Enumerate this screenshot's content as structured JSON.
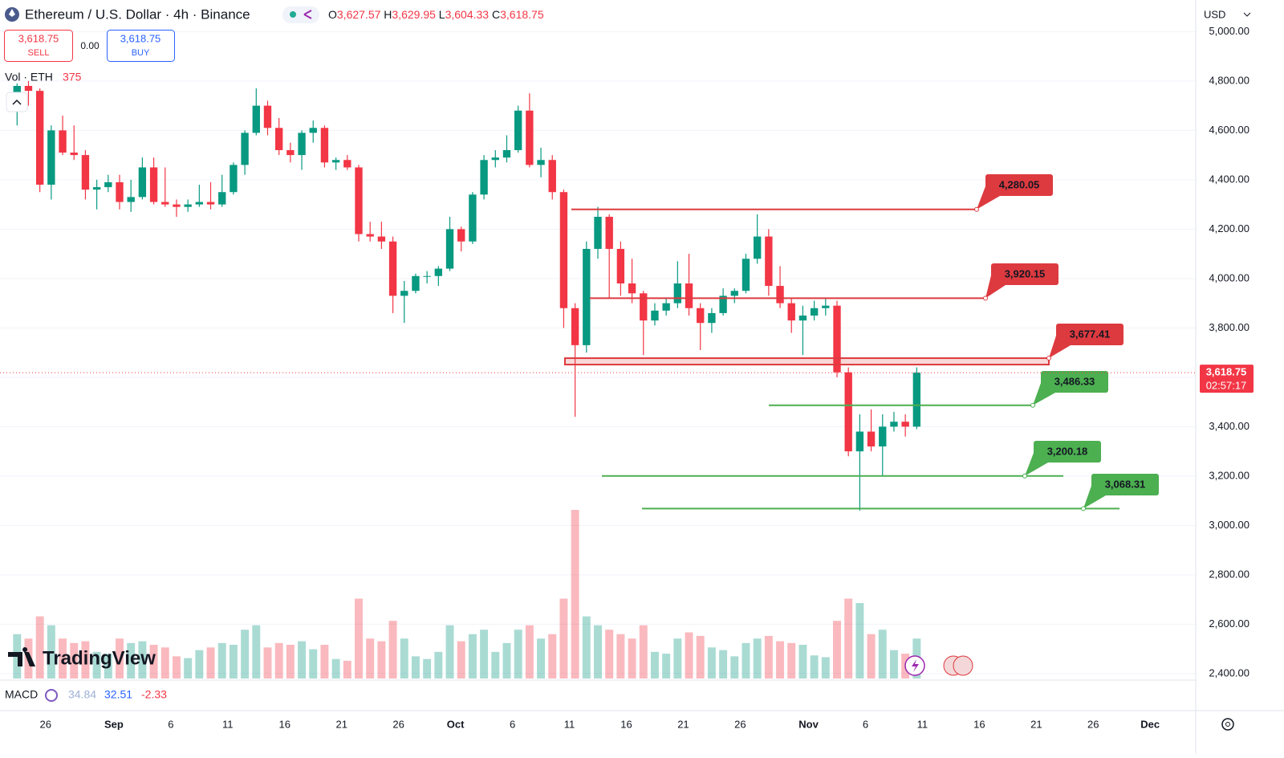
{
  "header": {
    "symbol": "Ethereum / U.S. Dollar · 4h · Binance",
    "ohlc": [
      {
        "label": "O",
        "value": "3,627.57"
      },
      {
        "label": "H",
        "value": "3,629.95"
      },
      {
        "label": "L",
        "value": "3,604.33"
      },
      {
        "label": "C",
        "value": "3,618.75"
      }
    ]
  },
  "trade": {
    "sell_price": "3,618.75",
    "sell": "SELL",
    "spread": "0.00",
    "buy_price": "3,618.75",
    "buy": "BUY"
  },
  "currency": "USD",
  "watermark": "TradingView",
  "macd": {
    "label": "MACD",
    "values": [
      "34.84",
      "32.51",
      "-2.33"
    ]
  },
  "chart_data": {
    "type": "candlestick",
    "x": [
      "08-23",
      "08-24",
      "08-25",
      "08-26",
      "08-27",
      "08-28",
      "08-29",
      "08-30",
      "08-31",
      "09-01",
      "09-02",
      "09-03",
      "09-04",
      "09-05",
      "09-06",
      "09-07",
      "09-08",
      "09-09",
      "09-10",
      "09-11",
      "09-12",
      "09-13",
      "09-14",
      "09-15",
      "09-16",
      "09-17",
      "09-18",
      "09-19",
      "09-20",
      "09-21",
      "09-22",
      "09-23",
      "09-24",
      "09-25",
      "09-26",
      "09-27",
      "09-28",
      "09-29",
      "09-30",
      "10-01",
      "10-02",
      "10-03",
      "10-04",
      "10-05",
      "10-06",
      "10-07",
      "10-08",
      "10-09",
      "10-10",
      "10-11",
      "10-12",
      "10-13",
      "10-14",
      "10-15",
      "10-16",
      "10-17",
      "10-18",
      "10-19",
      "10-20",
      "10-21",
      "10-22",
      "10-23",
      "10-24",
      "10-25",
      "10-26",
      "10-27",
      "10-28",
      "10-29",
      "10-30",
      "10-31",
      "11-01",
      "11-02",
      "11-03",
      "11-04",
      "11-05",
      "11-06",
      "11-07",
      "11-08",
      "11-09",
      "11-10"
    ],
    "open": [
      4680,
      4780,
      4760,
      4380,
      4600,
      4510,
      4500,
      4360,
      4370,
      4390,
      4310,
      4330,
      4450,
      4310,
      4300,
      4290,
      4300,
      4310,
      4300,
      4350,
      4460,
      4590,
      4700,
      4610,
      4520,
      4500,
      4590,
      4610,
      4470,
      4480,
      4450,
      4180,
      4170,
      4150,
      3930,
      3950,
      4010,
      4010,
      4040,
      4200,
      4150,
      4340,
      4480,
      4490,
      4520,
      4680,
      4460,
      4480,
      4350,
      3880,
      3730,
      4120,
      4250,
      4120,
      3980,
      3940,
      3830,
      3870,
      3900,
      3980,
      3880,
      3820,
      3860,
      3930,
      3950,
      4080,
      4170,
      3970,
      3900,
      3830,
      3850,
      3880,
      3890,
      3620,
      3300,
      3380,
      3320,
      3400,
      3420,
      3400
    ],
    "high": [
      4790,
      4800,
      4770,
      4620,
      4660,
      4620,
      4520,
      4400,
      4420,
      4420,
      4400,
      4490,
      4490,
      4450,
      4320,
      4320,
      4380,
      4390,
      4420,
      4470,
      4600,
      4770,
      4720,
      4650,
      4550,
      4600,
      4640,
      4620,
      4490,
      4500,
      4460,
      4230,
      4230,
      4170,
      3990,
      4020,
      4030,
      4050,
      4250,
      4210,
      4350,
      4500,
      4520,
      4580,
      4700,
      4750,
      4530,
      4500,
      4360,
      3900,
      4150,
      4290,
      4260,
      4150,
      4080,
      3950,
      3900,
      3920,
      4070,
      4100,
      3900,
      3880,
      3960,
      3960,
      4100,
      4260,
      4200,
      4050,
      3920,
      3890,
      3910,
      3920,
      3910,
      3640,
      3450,
      3470,
      3450,
      3460,
      3450,
      3640
    ],
    "low": [
      4620,
      4700,
      4350,
      4320,
      4500,
      4480,
      4320,
      4280,
      4350,
      4280,
      4270,
      4320,
      4300,
      4290,
      4250,
      4270,
      4290,
      4280,
      4290,
      4340,
      4420,
      4580,
      4580,
      4500,
      4470,
      4440,
      4550,
      4450,
      4440,
      4440,
      4150,
      4150,
      4120,
      3860,
      3820,
      3940,
      3980,
      3970,
      4030,
      4110,
      4140,
      4320,
      4450,
      4470,
      4510,
      4450,
      4410,
      4320,
      3800,
      3440,
      3700,
      4080,
      3920,
      3930,
      3900,
      3690,
      3810,
      3850,
      3880,
      3850,
      3710,
      3780,
      3850,
      3900,
      3940,
      4060,
      3930,
      3880,
      3780,
      3690,
      3830,
      3850,
      3600,
      3280,
      3060,
      3300,
      3200,
      3380,
      3360,
      3390
    ],
    "close": [
      4780,
      4760,
      4380,
      4600,
      4510,
      4500,
      4360,
      4370,
      4390,
      4310,
      4330,
      4450,
      4310,
      4300,
      4290,
      4300,
      4310,
      4300,
      4350,
      4460,
      4590,
      4700,
      4610,
      4520,
      4500,
      4590,
      4610,
      4470,
      4480,
      4450,
      4180,
      4170,
      4150,
      3930,
      3950,
      4010,
      4010,
      4040,
      4200,
      4150,
      4340,
      4480,
      4490,
      4520,
      4680,
      4460,
      4480,
      4350,
      3880,
      3730,
      4120,
      4250,
      4120,
      3980,
      3940,
      3830,
      3870,
      3900,
      3980,
      3880,
      3820,
      3860,
      3930,
      3950,
      4080,
      4170,
      3970,
      3900,
      3830,
      3850,
      3880,
      3890,
      3620,
      3300,
      3380,
      3320,
      3400,
      3420,
      3400,
      3618.75
    ],
    "volume": [
      500000,
      450000,
      700000,
      600000,
      450000,
      400000,
      420000,
      300000,
      280000,
      450000,
      400000,
      420000,
      380000,
      350000,
      250000,
      230000,
      320000,
      350000,
      400000,
      380000,
      550000,
      600000,
      350000,
      400000,
      380000,
      420000,
      330000,
      380000,
      220000,
      200000,
      900000,
      450000,
      420000,
      650000,
      450000,
      250000,
      220000,
      300000,
      600000,
      420000,
      500000,
      550000,
      300000,
      400000,
      550000,
      600000,
      450000,
      500000,
      900000,
      1900000,
      700000,
      600000,
      550000,
      500000,
      450000,
      600000,
      300000,
      280000,
      450000,
      520000,
      480000,
      350000,
      320000,
      250000,
      400000,
      450000,
      480000,
      420000,
      400000,
      380000,
      260000,
      240000,
      650000,
      900000,
      850000,
      500000,
      550000,
      320000,
      280000,
      450000
    ],
    "up_color": "#089981",
    "down_color": "#f23645",
    "volume_label": "Vol · ETH",
    "volume_last": 375,
    "ylim": [
      2380,
      5128
    ],
    "yticks": [
      {
        "value": 2400,
        "label": "2,400.00"
      },
      {
        "value": 2600,
        "label": "2,600.00"
      },
      {
        "value": 2800,
        "label": "2,800.00"
      },
      {
        "value": 3000,
        "label": "3,000.00"
      },
      {
        "value": 3200,
        "label": "3,200.00"
      },
      {
        "value": 3400,
        "label": "3,400.00"
      },
      {
        "value": 3600,
        "label": "3,600.00"
      },
      {
        "value": 3800,
        "label": "3,800.00"
      },
      {
        "value": 4000,
        "label": "4,000.00"
      },
      {
        "value": 4200,
        "label": "4,200.00"
      },
      {
        "value": 4400,
        "label": "4,400.00"
      },
      {
        "value": 4600,
        "label": "4,600.00"
      },
      {
        "value": 4800,
        "label": "4,800.00"
      },
      {
        "value": 5000,
        "label": "5,000.00"
      }
    ],
    "xlim": [
      "08-22",
      "12-05"
    ],
    "xticks": [
      {
        "value": "08-26",
        "label": "26"
      },
      {
        "value": "09-01",
        "label": "Sep"
      },
      {
        "value": "09-06",
        "label": "6"
      },
      {
        "value": "09-11",
        "label": "11"
      },
      {
        "value": "09-16",
        "label": "16"
      },
      {
        "value": "09-21",
        "label": "21"
      },
      {
        "value": "09-26",
        "label": "26"
      },
      {
        "value": "10-01",
        "label": "Oct"
      },
      {
        "value": "10-06",
        "label": "6"
      },
      {
        "value": "10-11",
        "label": "11"
      },
      {
        "value": "10-16",
        "label": "16"
      },
      {
        "value": "10-21",
        "label": "21"
      },
      {
        "value": "10-26",
        "label": "26"
      },
      {
        "value": "11-01",
        "label": "Nov"
      },
      {
        "value": "11-06",
        "label": "6"
      },
      {
        "value": "11-11",
        "label": "11"
      },
      {
        "value": "11-16",
        "label": "16"
      },
      {
        "value": "11-21",
        "label": "21"
      },
      {
        "value": "11-26",
        "label": "26"
      },
      {
        "value": "12-01",
        "label": "Dec"
      }
    ],
    "grid": true,
    "last_price": {
      "value": 3618.75,
      "label": "3,618.75"
    },
    "countdown": "02:57:17",
    "levels": [
      {
        "value": 4280.05,
        "label": "4,280.05",
        "color": "#dd3a3f"
      },
      {
        "value": 3920.15,
        "label": "3,920.15",
        "color": "#dd3a3f"
      },
      {
        "value": 3677.41,
        "label": "3,677.41",
        "color": "#dd3a3f"
      },
      {
        "value": 3486.33,
        "label": "3,486.33",
        "color": "#4caf50"
      },
      {
        "value": 3200.18,
        "label": "3,200.18",
        "color": "#4caf50"
      },
      {
        "value": 3068.31,
        "label": "3,068.31",
        "color": "#4caf50"
      }
    ]
  }
}
